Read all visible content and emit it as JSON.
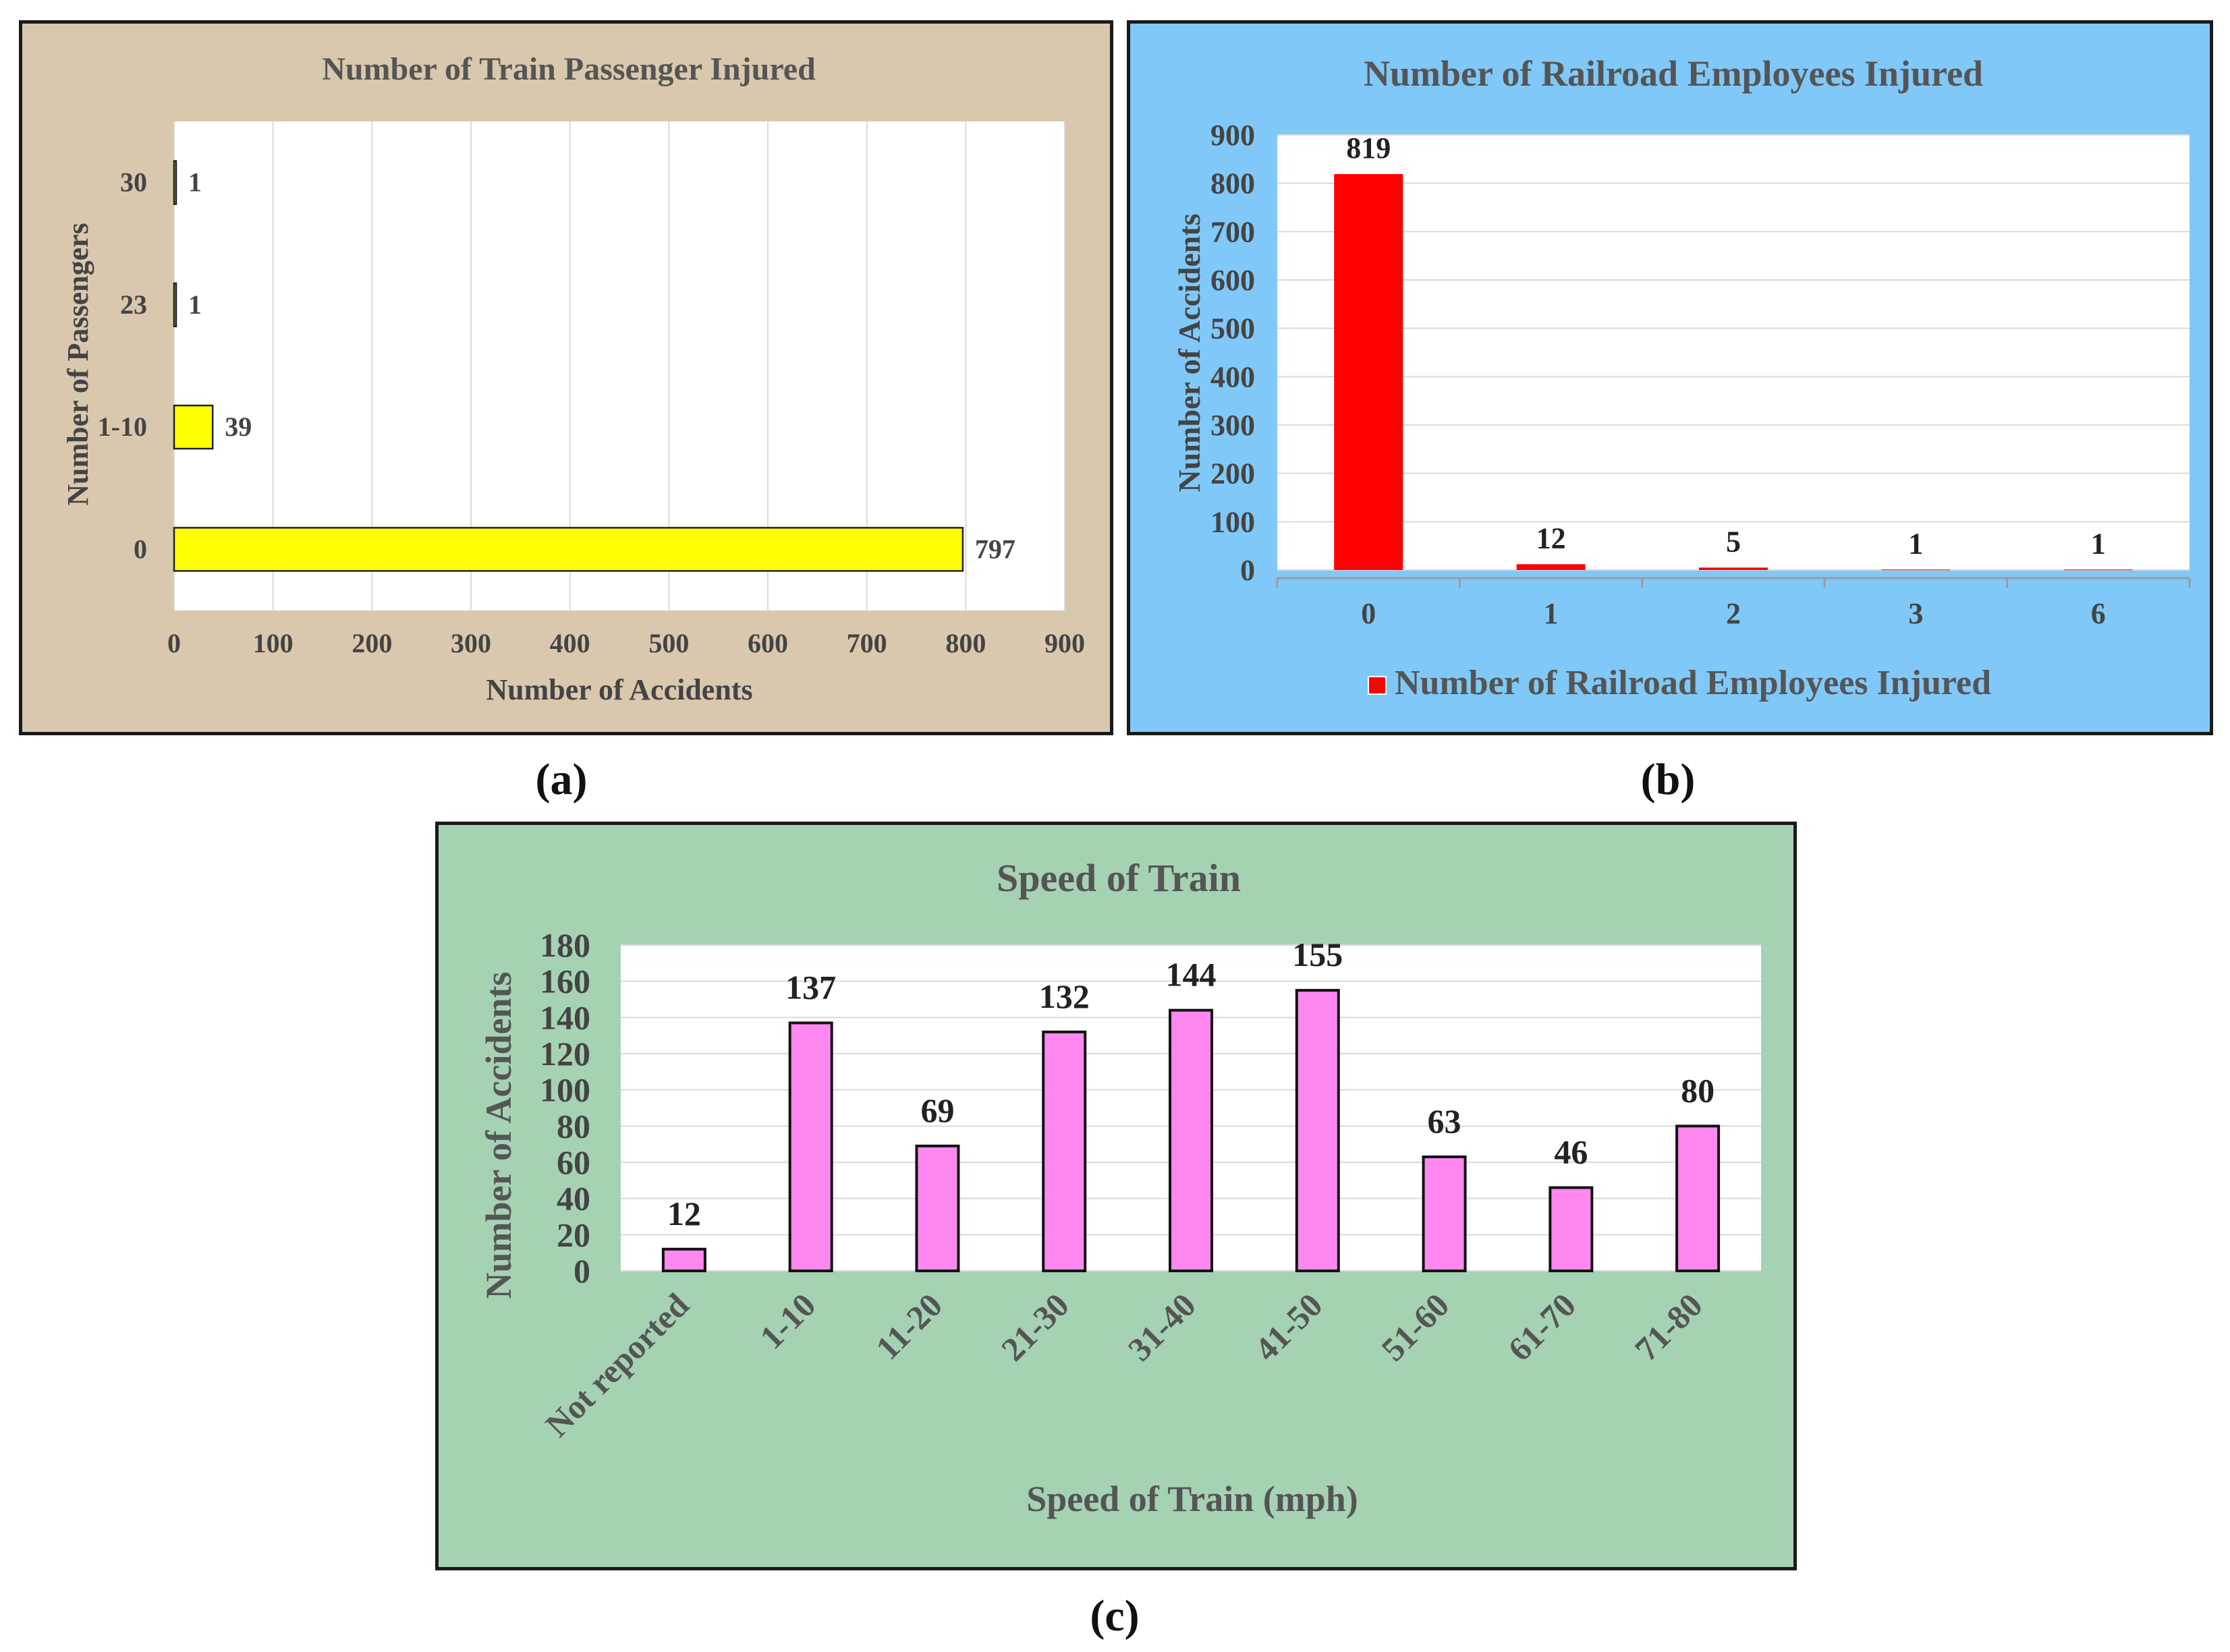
{
  "colors": {
    "panel_a_bg": "#dac8ae",
    "panel_b_bg": "#80c8f8",
    "panel_c_bg": "#a6d2b4",
    "bar_a": "#ffff00",
    "bar_b": "#ff0000",
    "bar_c": "#ff88f0",
    "title_text": "#555555",
    "axis_text": "#444444",
    "label_text": "#222222"
  },
  "panel_labels": {
    "a": "(a)",
    "b": "(b)",
    "c": "(c)"
  },
  "chart_data": [
    {
      "id": "a",
      "type": "bar",
      "orientation": "horizontal",
      "title": "Number of Train Passenger Injured",
      "xlabel": "Number of Accidents",
      "ylabel": "Number of Passengers",
      "categories": [
        "30",
        "23",
        "1-10",
        "0"
      ],
      "values": [
        1,
        1,
        39,
        797
      ],
      "xlim": [
        0,
        900
      ],
      "xticks": [
        0,
        100,
        200,
        300,
        400,
        500,
        600,
        700,
        800,
        900
      ],
      "grid": true,
      "legend": null
    },
    {
      "id": "b",
      "type": "bar",
      "orientation": "vertical",
      "title": "Number of Railroad Employees Injured",
      "xlabel": "",
      "ylabel": "Number of Accidents",
      "categories": [
        "0",
        "1",
        "2",
        "3",
        "6"
      ],
      "values": [
        819,
        12,
        5,
        1,
        1
      ],
      "ylim": [
        0,
        900
      ],
      "yticks": [
        0,
        100,
        200,
        300,
        400,
        500,
        600,
        700,
        800,
        900
      ],
      "grid": true,
      "legend": "Number of Railroad Employees Injured",
      "legend_position": "bottom"
    },
    {
      "id": "c",
      "type": "bar",
      "orientation": "vertical",
      "title": "Speed of Train",
      "xlabel": "Speed of Train (mph)",
      "ylabel": "Number of Accidents",
      "categories": [
        "Not reported",
        "1-10",
        "11-20",
        "21-30",
        "31-40",
        "41-50",
        "51-60",
        "61-70",
        "71-80"
      ],
      "values": [
        12,
        137,
        69,
        132,
        144,
        155,
        63,
        46,
        80
      ],
      "ylim": [
        0,
        180
      ],
      "yticks": [
        0,
        20,
        40,
        60,
        80,
        100,
        120,
        140,
        160,
        180
      ],
      "grid": true,
      "legend": null
    }
  ]
}
